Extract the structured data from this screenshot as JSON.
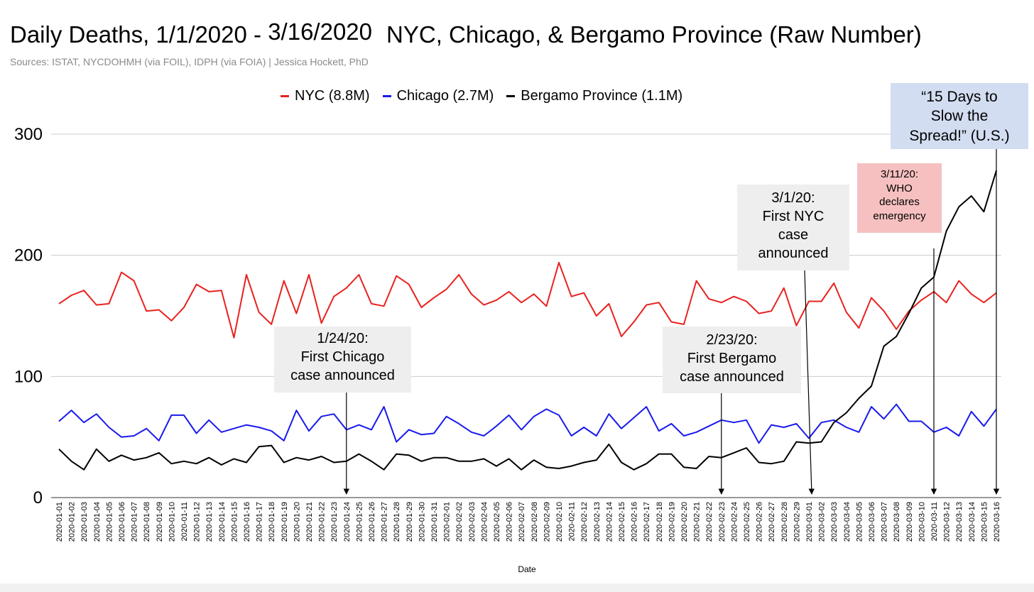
{
  "title_prefix": "Daily Deaths, 1/1/2020 - ",
  "title_date_end": "3/16/2020",
  "title_suffix": "NYC, Chicago, & Bergamo Province (Raw Number)",
  "subtitle": "Sources: ISTAT, NYCDOHMH (via FOIL), IDPH (via FOIA) | Jessica Hockett, PhD",
  "chart_data": {
    "type": "line",
    "title": "Daily Deaths, 1/1/2020 - 3/16/2020 NYC, Chicago, & Bergamo Province (Raw Number)",
    "xlabel": "Date",
    "ylabel": "",
    "ylim": [
      0,
      300
    ],
    "yticks": [
      "0",
      "100",
      "200",
      "300"
    ],
    "grid": true,
    "legend_position": "top-center",
    "x": [
      "2020-01-01",
      "2020-01-02",
      "2020-01-03",
      "2020-01-04",
      "2020-01-05",
      "2020-01-06",
      "2020-01-07",
      "2020-01-08",
      "2020-01-09",
      "2020-01-10",
      "2020-01-11",
      "2020-01-12",
      "2020-01-13",
      "2020-01-14",
      "2020-01-15",
      "2020-01-16",
      "2020-01-17",
      "2020-01-18",
      "2020-01-19",
      "2020-01-20",
      "2020-01-21",
      "2020-01-22",
      "2020-01-23",
      "2020-01-24",
      "2020-01-25",
      "2020-01-26",
      "2020-01-27",
      "2020-01-28",
      "2020-01-29",
      "2020-01-30",
      "2020-01-31",
      "2020-02-01",
      "2020-02-02",
      "2020-02-03",
      "2020-02-04",
      "2020-02-05",
      "2020-02-06",
      "2020-02-07",
      "2020-02-08",
      "2020-02-09",
      "2020-02-10",
      "2020-02-11",
      "2020-02-12",
      "2020-02-13",
      "2020-02-14",
      "2020-02-15",
      "2020-02-16",
      "2020-02-17",
      "2020-02-18",
      "2020-02-19",
      "2020-02-20",
      "2020-02-21",
      "2020-02-22",
      "2020-02-23",
      "2020-02-24",
      "2020-02-25",
      "2020-02-26",
      "2020-02-27",
      "2020-02-28",
      "2020-02-29",
      "2020-03-01",
      "2020-03-02",
      "2020-03-03",
      "2020-03-04",
      "2020-03-05",
      "2020-03-06",
      "2020-03-07",
      "2020-03-08",
      "2020-03-09",
      "2020-03-10",
      "2020-03-11",
      "2020-03-12",
      "2020-03-13",
      "2020-03-14",
      "2020-03-15",
      "2020-03-16"
    ],
    "series": [
      {
        "name": "NYC (8.8M)",
        "color": "#e8221f",
        "values": [
          160,
          167,
          171,
          159,
          160,
          186,
          179,
          154,
          155,
          146,
          157,
          176,
          170,
          171,
          132,
          184,
          153,
          143,
          179,
          152,
          184,
          144,
          166,
          173,
          184,
          160,
          158,
          183,
          176,
          157,
          165,
          172,
          184,
          168,
          159,
          163,
          170,
          161,
          168,
          158,
          194,
          166,
          169,
          150,
          160,
          133,
          145,
          159,
          161,
          145,
          143,
          179,
          164,
          161,
          166,
          162,
          152,
          154,
          173,
          142,
          162,
          162,
          177,
          153,
          140,
          165,
          154,
          139,
          154,
          163,
          170,
          161,
          179,
          168,
          161,
          169
        ]
      },
      {
        "name": "Chicago (2.7M)",
        "color": "#1a1aee",
        "values": [
          63,
          72,
          62,
          69,
          58,
          50,
          51,
          57,
          47,
          68,
          68,
          53,
          64,
          54,
          57,
          60,
          58,
          55,
          47,
          72,
          55,
          67,
          69,
          56,
          60,
          56,
          75,
          46,
          56,
          52,
          53,
          67,
          61,
          54,
          51,
          59,
          68,
          56,
          67,
          73,
          68,
          51,
          58,
          51,
          69,
          57,
          66,
          75,
          55,
          61,
          51,
          54,
          59,
          64,
          62,
          64,
          45,
          60,
          58,
          61,
          49,
          62,
          64,
          58,
          54,
          75,
          65,
          77,
          63,
          63,
          54,
          58,
          51,
          71,
          59,
          73
        ]
      },
      {
        "name": "Bergamo Province (1.1M)",
        "color": "#000000",
        "values": [
          40,
          30,
          23,
          40,
          30,
          35,
          31,
          33,
          37,
          28,
          30,
          28,
          33,
          27,
          32,
          29,
          42,
          43,
          29,
          33,
          31,
          34,
          29,
          30,
          36,
          30,
          23,
          36,
          35,
          30,
          33,
          33,
          30,
          30,
          32,
          26,
          32,
          23,
          31,
          25,
          24,
          26,
          29,
          31,
          44,
          29,
          23,
          28,
          36,
          36,
          25,
          24,
          34,
          33,
          37,
          41,
          29,
          28,
          30,
          46,
          45,
          46,
          62,
          70,
          82,
          92,
          125,
          133,
          152,
          173,
          182,
          220,
          240,
          249,
          236,
          270
        ]
      }
    ]
  },
  "annotations": {
    "chicago": {
      "line1": "1/24/20:",
      "line2": "First Chicago",
      "line3": "case announced"
    },
    "bergamo": {
      "line1": "2/23/20:",
      "line2": "First Bergamo",
      "line3": "case announced"
    },
    "nyc": {
      "line1": "3/1/20:",
      "line2": "First NYC",
      "line3": "case",
      "line4": "announced"
    },
    "who": {
      "line1": "3/11/20:",
      "line2": "WHO",
      "line3": "declares",
      "line4": "emergency"
    },
    "us": {
      "line1": "“15 Days to",
      "line2": "Slow the",
      "line3": "Spread!” (U.S.)"
    }
  },
  "annotation_dates": {
    "chicago": "2020-01-24",
    "bergamo": "2020-02-23",
    "nyc": "2020-03-01",
    "who": "2020-03-11",
    "us": "2020-03-16"
  }
}
